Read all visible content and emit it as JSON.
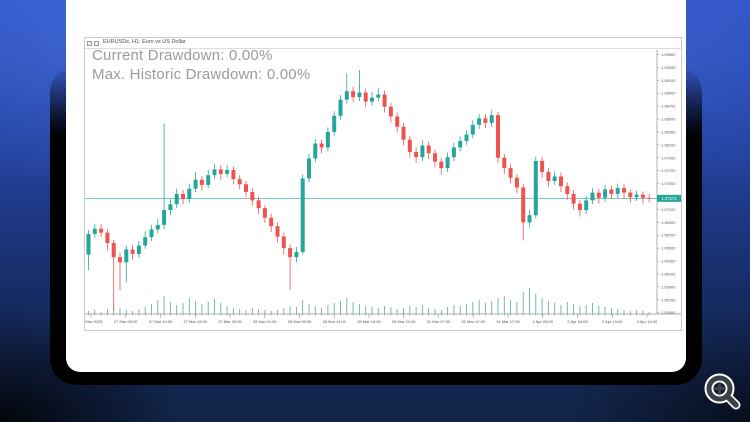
{
  "window": {
    "title": "EURUSDx, H1: Euro vs US Dollar"
  },
  "overlay": {
    "current_drawdown": "Current Drawdown: 0.00%",
    "max_drawdown": "Max. Historic Drawdown: 0.00%"
  },
  "icons": {
    "zoom_button": "magnifier-plus-icon",
    "window_menu": "window-box-icon"
  },
  "colors": {
    "bull": "#26a69a",
    "bear": "#ef5350",
    "volume": "#6aaea6",
    "axis": "#8f8f8f",
    "tick": "#8f8f8f",
    "label": "#555555",
    "price_line": "#4db8ae",
    "tag_bg": "#26a69a",
    "tag_text": "#ffffff",
    "overlay_text": "#9b9b9b",
    "background_top": "#2d52c2",
    "background_bottom": "#122448"
  },
  "chart_data": {
    "type": "candlestick",
    "symbol": "EURUSD",
    "timeframe": "H1",
    "title": "EURUSDx, H1: Euro vs US Dollar",
    "grid": false,
    "legend": "none",
    "price_line": 1.07271,
    "price_tag": "1.07271",
    "y_axis": {
      "min": 1.0548,
      "max": 1.096,
      "decimals": 5,
      "labels": [
        "1.09500",
        "1.09300",
        "1.09100",
        "1.08900",
        "1.08700",
        "1.08500",
        "1.08300",
        "1.08100",
        "1.07900",
        "1.07700",
        "1.07500",
        "1.07300",
        "1.07100",
        "1.06900",
        "1.06700",
        "1.06500",
        "1.06300",
        "1.06100",
        "1.05900",
        "1.05700",
        "1.05500"
      ]
    },
    "x_labels": [
      "27 Mar 2025",
      "27 Mar 05:00",
      "27 Mar 10:00",
      "27 Mar 15:00",
      "27 Mar 20:00",
      "28 Mar 01:00",
      "28 Mar 06:00",
      "28 Mar 11:00",
      "28 Mar 16:00",
      "28 Mar 21:00",
      "31 Mar 07:00",
      "31 Mar 12:00",
      "31 Mar 17:00",
      "1 Apr 08:00",
      "2 Apr 04:00",
      "2 Apr 19:00",
      "3 Apr 14:00"
    ],
    "candles": [
      [
        1.064,
        1.0678,
        1.0616,
        1.0672
      ],
      [
        1.0672,
        1.0688,
        1.0666,
        1.068
      ],
      [
        1.068,
        1.0687,
        1.0667,
        1.0674
      ],
      [
        1.0674,
        1.0679,
        1.0647,
        1.0658
      ],
      [
        1.0658,
        1.0663,
        1.0553,
        1.0636
      ],
      [
        1.0636,
        1.0643,
        1.0585,
        1.0628
      ],
      [
        1.0628,
        1.0654,
        1.0597,
        1.0648
      ],
      [
        1.0648,
        1.0655,
        1.0632,
        1.0641
      ],
      [
        1.0641,
        1.0661,
        1.0635,
        1.0654
      ],
      [
        1.0654,
        1.0676,
        1.0649,
        1.0667
      ],
      [
        1.0667,
        1.0686,
        1.0661,
        1.0679
      ],
      [
        1.0679,
        1.0695,
        1.0673,
        1.0686
      ],
      [
        1.0686,
        1.0843,
        1.0679,
        1.0709
      ],
      [
        1.0709,
        1.0726,
        1.0701,
        1.0718
      ],
      [
        1.0718,
        1.0742,
        1.0712,
        1.0734
      ],
      [
        1.0734,
        1.074,
        1.0718,
        1.0726
      ],
      [
        1.0726,
        1.075,
        1.072,
        1.0742
      ],
      [
        1.0742,
        1.0768,
        1.0737,
        1.0756
      ],
      [
        1.0756,
        1.0762,
        1.0739,
        1.0748
      ],
      [
        1.0748,
        1.0771,
        1.0743,
        1.0763
      ],
      [
        1.0763,
        1.0781,
        1.0757,
        1.0772
      ],
      [
        1.0772,
        1.0778,
        1.0756,
        1.0765
      ],
      [
        1.0765,
        1.0779,
        1.076,
        1.0771
      ],
      [
        1.0771,
        1.0776,
        1.0749,
        1.0757
      ],
      [
        1.0757,
        1.0763,
        1.0741,
        1.0749
      ],
      [
        1.0749,
        1.0754,
        1.0729,
        1.0737
      ],
      [
        1.0737,
        1.0743,
        1.0716,
        1.0724
      ],
      [
        1.0724,
        1.073,
        1.0703,
        1.0712
      ],
      [
        1.0712,
        1.0717,
        1.0689,
        1.0697
      ],
      [
        1.0697,
        1.0703,
        1.0675,
        1.0684
      ],
      [
        1.0684,
        1.069,
        1.0659,
        1.0668
      ],
      [
        1.0668,
        1.0674,
        1.064,
        1.065
      ],
      [
        1.065,
        1.0656,
        1.0585,
        1.0636
      ],
      [
        1.0636,
        1.0652,
        1.0628,
        1.0644
      ],
      [
        1.0644,
        1.0764,
        1.064,
        1.0758
      ],
      [
        1.0758,
        1.0796,
        1.0752,
        1.0789
      ],
      [
        1.0789,
        1.0819,
        1.0783,
        1.0812
      ],
      [
        1.0812,
        1.0818,
        1.0797,
        1.0806
      ],
      [
        1.0806,
        1.0837,
        1.08,
        1.083
      ],
      [
        1.083,
        1.0862,
        1.0824,
        1.0855
      ],
      [
        1.0855,
        1.0887,
        1.0849,
        1.088
      ],
      [
        1.088,
        1.0921,
        1.0874,
        1.0893
      ],
      [
        1.0893,
        1.09,
        1.0876,
        1.0884
      ],
      [
        1.0884,
        1.0926,
        1.0878,
        1.0891
      ],
      [
        1.0891,
        1.0897,
        1.0868,
        1.0877
      ],
      [
        1.0877,
        1.0892,
        1.0871,
        1.0883
      ],
      [
        1.0883,
        1.0898,
        1.0877,
        1.0888
      ],
      [
        1.0888,
        1.0894,
        1.086,
        1.0869
      ],
      [
        1.0869,
        1.0875,
        1.0845,
        1.0854
      ],
      [
        1.0854,
        1.086,
        1.0829,
        1.0838
      ],
      [
        1.0838,
        1.0844,
        1.0809,
        1.0818
      ],
      [
        1.0818,
        1.0824,
        1.079,
        1.0799
      ],
      [
        1.0799,
        1.0806,
        1.0782,
        1.0791
      ],
      [
        1.0791,
        1.0817,
        1.0785,
        1.0809
      ],
      [
        1.0809,
        1.0815,
        1.0788,
        1.0797
      ],
      [
        1.0797,
        1.0803,
        1.0775,
        1.0784
      ],
      [
        1.0784,
        1.079,
        1.0764,
        1.0774
      ],
      [
        1.0774,
        1.0798,
        1.0768,
        1.0791
      ],
      [
        1.0791,
        1.0813,
        1.0785,
        1.0806
      ],
      [
        1.0806,
        1.0823,
        1.08,
        1.0816
      ],
      [
        1.0816,
        1.0833,
        1.081,
        1.0826
      ],
      [
        1.0826,
        1.0848,
        1.082,
        1.0841
      ],
      [
        1.0841,
        1.0858,
        1.0835,
        1.0851
      ],
      [
        1.0851,
        1.0857,
        1.0836,
        1.0844
      ],
      [
        1.0844,
        1.0864,
        1.0838,
        1.0856
      ],
      [
        1.0856,
        1.0861,
        1.0782,
        1.079
      ],
      [
        1.079,
        1.0796,
        1.0765,
        1.0774
      ],
      [
        1.0774,
        1.078,
        1.075,
        1.0759
      ],
      [
        1.0759,
        1.0765,
        1.0735,
        1.0744
      ],
      [
        1.0744,
        1.0749,
        1.0662,
        1.069
      ],
      [
        1.069,
        1.0709,
        1.0682,
        1.0701
      ],
      [
        1.0701,
        1.0792,
        1.0696,
        1.0785
      ],
      [
        1.0785,
        1.0791,
        1.0759,
        1.0768
      ],
      [
        1.0768,
        1.0774,
        1.0745,
        1.0754
      ],
      [
        1.0754,
        1.0769,
        1.0748,
        1.0761
      ],
      [
        1.0761,
        1.0767,
        1.0737,
        1.0746
      ],
      [
        1.0746,
        1.0752,
        1.0725,
        1.0734
      ],
      [
        1.0734,
        1.074,
        1.071,
        1.0719
      ],
      [
        1.0719,
        1.0725,
        1.0699,
        1.0709
      ],
      [
        1.0709,
        1.0731,
        1.0703,
        1.0724
      ],
      [
        1.0724,
        1.0743,
        1.0718,
        1.0736
      ],
      [
        1.0736,
        1.0742,
        1.0719,
        1.0728
      ],
      [
        1.0728,
        1.0748,
        1.0722,
        1.0741
      ],
      [
        1.0741,
        1.0747,
        1.0726,
        1.0734
      ],
      [
        1.0734,
        1.075,
        1.0728,
        1.0743
      ],
      [
        1.0743,
        1.0749,
        1.0727,
        1.0736
      ],
      [
        1.0736,
        1.0741,
        1.072,
        1.0729
      ],
      [
        1.0729,
        1.0739,
        1.0723,
        1.0733
      ],
      [
        1.0733,
        1.0738,
        1.0719,
        1.0728
      ],
      [
        1.0728,
        1.0734,
        1.0721,
        1.0727
      ]
    ],
    "volumes": [
      3,
      4,
      2,
      5,
      8,
      6,
      4,
      3,
      5,
      7,
      10,
      14,
      18,
      12,
      9,
      11,
      16,
      13,
      10,
      12,
      15,
      11,
      8,
      6,
      5,
      4,
      6,
      5,
      4,
      3,
      4,
      6,
      8,
      7,
      14,
      10,
      8,
      6,
      9,
      11,
      13,
      16,
      12,
      10,
      8,
      7,
      6,
      8,
      7,
      5,
      6,
      8,
      7,
      9,
      6,
      5,
      4,
      7,
      9,
      8,
      10,
      12,
      14,
      11,
      13,
      16,
      18,
      14,
      12,
      22,
      26,
      20,
      16,
      13,
      11,
      9,
      12,
      10,
      8,
      9,
      11,
      8,
      7,
      6,
      5,
      4,
      3,
      4,
      3,
      2
    ]
  }
}
